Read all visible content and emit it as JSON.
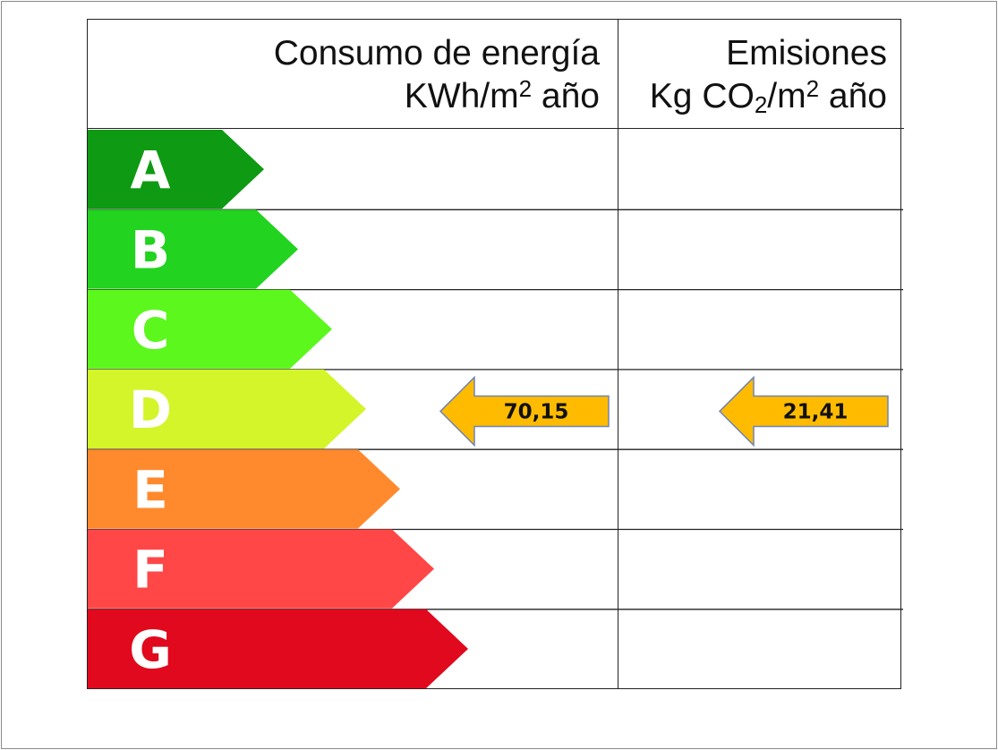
{
  "chart_data": {
    "type": "table",
    "columns": [
      {
        "key": "consumo",
        "title_line1": "Consumo de energía",
        "title_line2_pre": "KWh/m",
        "title_line2_sup": "2",
        "title_line2_post": " año"
      },
      {
        "key": "emisiones",
        "title_line1": "Emisiones",
        "title_line2_pre": "Kg CO",
        "title_line2_sub": "2",
        "title_line2_mid": "/m",
        "title_line2_sup": "2",
        "title_line2_post": " año"
      }
    ],
    "categories": [
      "A",
      "B",
      "C",
      "D",
      "E",
      "F",
      "G"
    ],
    "category_colors": [
      "#0e9a12",
      "#22d31f",
      "#5cf71d",
      "#d4f52a",
      "#ff8a2e",
      "#ff4747",
      "#e0091d"
    ],
    "ratings": [
      {
        "column": "consumo",
        "category": "D",
        "value": "70,15"
      },
      {
        "column": "emisiones",
        "category": "D",
        "value": "21,41"
      }
    ],
    "indicator_color": "#ffbb00",
    "indicator_border": "#6f84b8"
  }
}
